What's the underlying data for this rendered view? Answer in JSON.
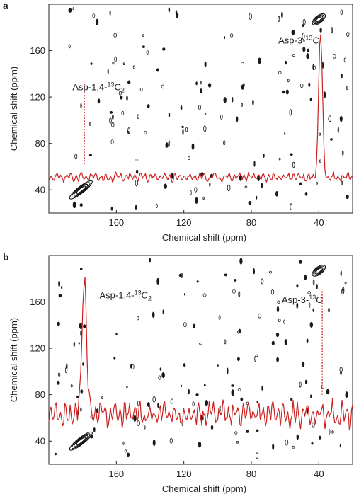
{
  "chart_data": [
    {
      "type": "line",
      "panel": "a",
      "title": "",
      "xlabel": "Chemical shift (ppm)",
      "ylabel": "Chemical shift (ppm)",
      "x_reversed": true,
      "xlim": [
        200,
        20
      ],
      "ylim": [
        20,
        200
      ],
      "xticks": [
        160,
        120,
        80,
        40
      ],
      "yticks": [
        160,
        120,
        80,
        40
      ],
      "series": [
        {
          "color": "#cc1f1f",
          "baseline": 51,
          "noise": 4,
          "peaks": [
            {
              "x": 39,
              "height": 176,
              "width": 1.6
            }
          ]
        }
      ],
      "annotations": [
        {
          "text_main": "Asp-1,4-",
          "text_sup": "13",
          "text_tail": "C",
          "text_sub": "2",
          "x": 186,
          "y": 126
        },
        {
          "text_main": "Asp-3-",
          "text_sup": "13",
          "text_tail": "C",
          "x": 64,
          "y": 166
        }
      ],
      "dotted_marker": {
        "x": 179,
        "y_from": 62,
        "y_to": 133
      },
      "diagonal_peaks": [
        {
          "x": 181,
          "y": 40
        },
        {
          "x": 40,
          "y": 187
        }
      ]
    },
    {
      "type": "line",
      "panel": "b",
      "title": "",
      "xlabel": "Chemical shift (ppm)",
      "ylabel": "Chemical shift (ppm)",
      "x_reversed": true,
      "xlim": [
        200,
        20
      ],
      "ylim": [
        20,
        200
      ],
      "xticks": [
        160,
        120,
        80,
        40
      ],
      "yticks": [
        160,
        120,
        80,
        40
      ],
      "series": [
        {
          "color": "#cc1f1f",
          "baseline": 63,
          "noise": 11,
          "peaks": [
            {
              "x": 179,
              "height": 183,
              "width": 1.9
            }
          ]
        }
      ],
      "annotations": [
        {
          "text_main": "Asp-1,4-",
          "text_sup": "13",
          "text_tail": "C",
          "text_sub": "2",
          "x": 170,
          "y": 163
        },
        {
          "text_main": "Asp-3-",
          "text_sup": "13",
          "text_tail": "C",
          "x": 62,
          "y": 159
        }
      ],
      "dotted_marker": {
        "x": 38,
        "y_from": 80,
        "y_to": 170
      },
      "diagonal_peaks": [
        {
          "x": 181,
          "y": 40
        },
        {
          "x": 40,
          "y": 187
        }
      ]
    }
  ],
  "panels": [
    {
      "letter": "a"
    },
    {
      "letter": "b"
    }
  ]
}
